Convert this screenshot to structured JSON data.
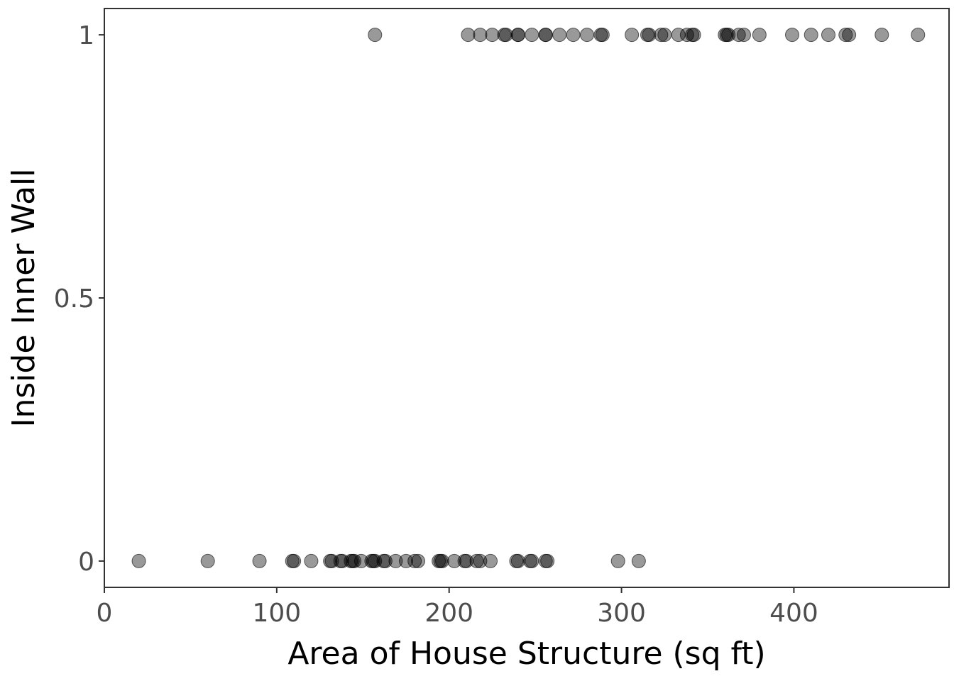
{
  "chart_data": {
    "type": "scatter",
    "title": "",
    "xlabel": "Area of House Structure (sq ft)",
    "ylabel": "Inside Inner Wall",
    "xlim": [
      0,
      490
    ],
    "ylim": [
      -0.05,
      1.05
    ],
    "xticks": [
      0,
      100,
      200,
      300,
      400
    ],
    "xtick_labels": [
      "0",
      "100",
      "200",
      "300",
      "400"
    ],
    "yticks": [
      0,
      0.5,
      1
    ],
    "ytick_labels": [
      "0",
      "0.5",
      "1"
    ],
    "grid": false,
    "legend": "none",
    "point_color": "#000000",
    "point_alpha": 0.4,
    "points": [
      {
        "x": 157,
        "y": 1
      },
      {
        "x": 211,
        "y": 1
      },
      {
        "x": 218,
        "y": 1
      },
      {
        "x": 225,
        "y": 1
      },
      {
        "x": 232,
        "y": 1
      },
      {
        "x": 233,
        "y": 1
      },
      {
        "x": 240,
        "y": 1
      },
      {
        "x": 240,
        "y": 1
      },
      {
        "x": 248,
        "y": 1
      },
      {
        "x": 256,
        "y": 1
      },
      {
        "x": 256,
        "y": 1
      },
      {
        "x": 264,
        "y": 1
      },
      {
        "x": 272,
        "y": 1
      },
      {
        "x": 280,
        "y": 1
      },
      {
        "x": 288,
        "y": 1
      },
      {
        "x": 289,
        "y": 1
      },
      {
        "x": 306,
        "y": 1
      },
      {
        "x": 315,
        "y": 1
      },
      {
        "x": 316,
        "y": 1
      },
      {
        "x": 323,
        "y": 1
      },
      {
        "x": 325,
        "y": 1
      },
      {
        "x": 333,
        "y": 1
      },
      {
        "x": 338,
        "y": 1
      },
      {
        "x": 341,
        "y": 1
      },
      {
        "x": 342,
        "y": 1
      },
      {
        "x": 360,
        "y": 1
      },
      {
        "x": 361,
        "y": 1
      },
      {
        "x": 362,
        "y": 1
      },
      {
        "x": 368,
        "y": 1
      },
      {
        "x": 371,
        "y": 1
      },
      {
        "x": 380,
        "y": 1
      },
      {
        "x": 399,
        "y": 1
      },
      {
        "x": 410,
        "y": 1
      },
      {
        "x": 420,
        "y": 1
      },
      {
        "x": 430,
        "y": 1
      },
      {
        "x": 432,
        "y": 1
      },
      {
        "x": 451,
        "y": 1
      },
      {
        "x": 472,
        "y": 1
      },
      {
        "x": 20,
        "y": 0
      },
      {
        "x": 60,
        "y": 0
      },
      {
        "x": 90,
        "y": 0
      },
      {
        "x": 109,
        "y": 0
      },
      {
        "x": 110,
        "y": 0
      },
      {
        "x": 120,
        "y": 0
      },
      {
        "x": 131,
        "y": 0
      },
      {
        "x": 132,
        "y": 0
      },
      {
        "x": 137,
        "y": 0
      },
      {
        "x": 138,
        "y": 0
      },
      {
        "x": 143,
        "y": 0
      },
      {
        "x": 144,
        "y": 0
      },
      {
        "x": 145,
        "y": 0
      },
      {
        "x": 149,
        "y": 0
      },
      {
        "x": 155,
        "y": 0
      },
      {
        "x": 156,
        "y": 0
      },
      {
        "x": 157,
        "y": 0
      },
      {
        "x": 162,
        "y": 0
      },
      {
        "x": 163,
        "y": 0
      },
      {
        "x": 169,
        "y": 0
      },
      {
        "x": 175,
        "y": 0
      },
      {
        "x": 180,
        "y": 0
      },
      {
        "x": 182,
        "y": 0
      },
      {
        "x": 194,
        "y": 0
      },
      {
        "x": 195,
        "y": 0
      },
      {
        "x": 196,
        "y": 0
      },
      {
        "x": 203,
        "y": 0
      },
      {
        "x": 209,
        "y": 0
      },
      {
        "x": 210,
        "y": 0
      },
      {
        "x": 216,
        "y": 0
      },
      {
        "x": 218,
        "y": 0
      },
      {
        "x": 224,
        "y": 0
      },
      {
        "x": 239,
        "y": 0
      },
      {
        "x": 240,
        "y": 0
      },
      {
        "x": 247,
        "y": 0
      },
      {
        "x": 248,
        "y": 0
      },
      {
        "x": 256,
        "y": 0
      },
      {
        "x": 257,
        "y": 0
      },
      {
        "x": 298,
        "y": 0
      },
      {
        "x": 310,
        "y": 0
      }
    ]
  }
}
